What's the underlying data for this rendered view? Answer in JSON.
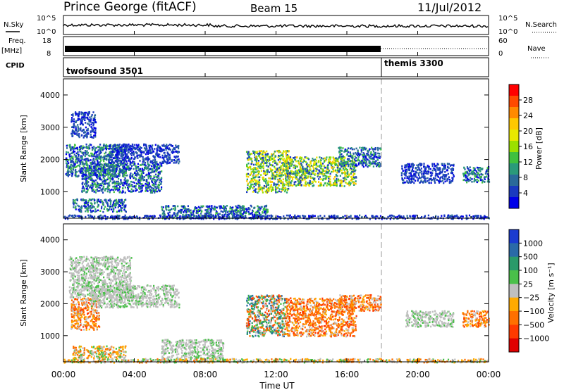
{
  "header": {
    "station": "Prince George (fitACF)",
    "beam": "Beam 15",
    "date": "11/Jul/2012"
  },
  "nsky_panel": {
    "left_label": "N.Sky",
    "right_label": "N.Search",
    "y_ticks_left": [
      "10^5",
      "10^0"
    ],
    "y_ticks_right": [
      "10^5",
      "10^0"
    ]
  },
  "freq_panel": {
    "left_label": "Freq.",
    "unit_label": "[MHz]",
    "right_label": "Nave",
    "y_ticks_left": [
      "18",
      "8"
    ],
    "y_ticks_right": [
      "60",
      "0"
    ]
  },
  "cpid_panel": {
    "label": "CPID",
    "programs": [
      {
        "name": "twofsound 3501",
        "start_hour": 0
      },
      {
        "name": "themis 3300",
        "start_hour": 18
      }
    ]
  },
  "chart_data": [
    {
      "type": "heatmap",
      "name": "power",
      "ylabel": "Slant Range [km]",
      "y_ticks": [
        "4000",
        "3000",
        "2000",
        "1000"
      ],
      "ylim": [
        180,
        4500
      ],
      "xlim": [
        0,
        24
      ],
      "colorbar": {
        "label": "Power [dB]",
        "ticks": [
          "28",
          "24",
          "20",
          "16",
          "12",
          "8",
          "4"
        ],
        "colors": [
          "#ff0000",
          "#ff4a00",
          "#ff8a00",
          "#ffc800",
          "#e8e800",
          "#9be000",
          "#3fc03f",
          "#2a9a7a",
          "#2a6a9a",
          "#1a3ac0",
          "#0000e8"
        ]
      },
      "echo_regions": [
        {
          "t0": 0.4,
          "t1": 1.8,
          "r0": 2700,
          "r1": 3500,
          "level": "low"
        },
        {
          "t0": 0.1,
          "t1": 3.5,
          "r0": 1500,
          "r1": 2500,
          "level": "mid"
        },
        {
          "t0": 1.0,
          "t1": 5.5,
          "r0": 1000,
          "r1": 1900,
          "level": "mid"
        },
        {
          "t0": 0.5,
          "t1": 3.5,
          "r0": 400,
          "r1": 800,
          "level": "mid"
        },
        {
          "t0": 2.5,
          "t1": 6.5,
          "r0": 1900,
          "r1": 2500,
          "level": "low"
        },
        {
          "t0": 5.5,
          "t1": 11.5,
          "r0": 200,
          "r1": 600,
          "level": "mid"
        },
        {
          "t0": 10.3,
          "t1": 12.7,
          "r0": 1000,
          "r1": 2300,
          "level": "high"
        },
        {
          "t0": 12.5,
          "t1": 16.5,
          "r0": 1200,
          "r1": 2100,
          "level": "high"
        },
        {
          "t0": 15.5,
          "t1": 17.9,
          "r0": 1800,
          "r1": 2400,
          "level": "mid"
        },
        {
          "t0": 19.0,
          "t1": 22.0,
          "r0": 1300,
          "r1": 1900,
          "level": "low"
        },
        {
          "t0": 22.5,
          "t1": 24.0,
          "r0": 1300,
          "r1": 1800,
          "level": "mid"
        },
        {
          "t0": 0.0,
          "t1": 24.0,
          "r0": 180,
          "r1": 300,
          "level": "low"
        }
      ]
    },
    {
      "type": "heatmap",
      "name": "velocity",
      "ylabel": "Slant Range [km]",
      "y_ticks": [
        "4000",
        "3000",
        "2000",
        "1000"
      ],
      "ylim": [
        180,
        4500
      ],
      "xlim": [
        0,
        24
      ],
      "colorbar": {
        "label": "Velocity [m s⁻¹]",
        "ticks": [
          "1000",
          "500",
          "100",
          "25",
          "−25",
          "−100",
          "−500",
          "−1000"
        ],
        "colors": [
          "#1a3cd0",
          "#2a6aa8",
          "#2a9a6a",
          "#4ac04a",
          "#bfbfbf",
          "#ffaa00",
          "#ff7000",
          "#ff3a00",
          "#e00000"
        ]
      },
      "echo_regions": [
        {
          "t0": 0.3,
          "t1": 3.8,
          "r0": 2200,
          "r1": 3500,
          "level": "zero"
        },
        {
          "t0": 0.4,
          "t1": 2.0,
          "r0": 1200,
          "r1": 2200,
          "level": "neg"
        },
        {
          "t0": 1.5,
          "t1": 6.5,
          "r0": 1900,
          "r1": 2600,
          "level": "zero"
        },
        {
          "t0": 0.5,
          "t1": 3.5,
          "r0": 300,
          "r1": 700,
          "level": "negsmall"
        },
        {
          "t0": 5.5,
          "t1": 9.0,
          "r0": 200,
          "r1": 900,
          "level": "zero"
        },
        {
          "t0": 10.3,
          "t1": 12.5,
          "r0": 1000,
          "r1": 2300,
          "level": "mixed"
        },
        {
          "t0": 12.5,
          "t1": 16.5,
          "r0": 1000,
          "r1": 2200,
          "level": "neg"
        },
        {
          "t0": 15.5,
          "t1": 17.9,
          "r0": 1800,
          "r1": 2300,
          "level": "neg"
        },
        {
          "t0": 19.3,
          "t1": 22.0,
          "r0": 1300,
          "r1": 1800,
          "level": "zero"
        },
        {
          "t0": 22.5,
          "t1": 24.0,
          "r0": 1300,
          "r1": 1800,
          "level": "neg"
        },
        {
          "t0": 0.0,
          "t1": 24.0,
          "r0": 180,
          "r1": 300,
          "level": "negsmall"
        }
      ]
    }
  ],
  "time_axis": {
    "label": "Time UT",
    "ticks": [
      "00:00",
      "04:00",
      "08:00",
      "12:00",
      "16:00",
      "20:00",
      "00:00"
    ]
  }
}
